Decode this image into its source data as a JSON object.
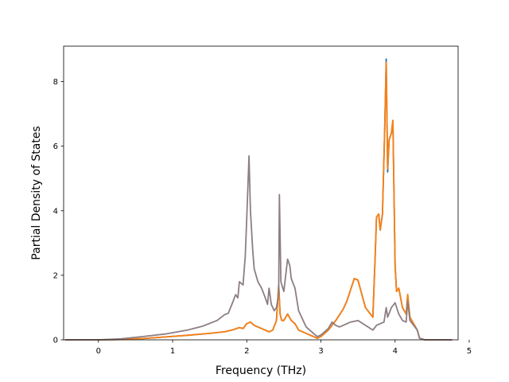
{
  "chart_data": {
    "type": "line",
    "title": "",
    "xlabel": "Frequency (THz)",
    "ylabel": "Partial Density of States",
    "xlim": [
      -0.47,
      4.85
    ],
    "ylim": [
      0,
      9.1
    ],
    "xticks": [
      0,
      1,
      2,
      3,
      4,
      5
    ],
    "yticks": [
      0,
      2,
      4,
      6,
      8
    ],
    "xtick_labels": [
      "0",
      "1",
      "2",
      "3",
      "4",
      "5"
    ],
    "ytick_labels": [
      "0",
      "2",
      "4",
      "6",
      "8"
    ],
    "grid": false,
    "legend": null,
    "series": [
      {
        "color": "#1f77b4",
        "x": [
          -0.45,
          0.0,
          0.3,
          0.6,
          0.9,
          1.2,
          1.5,
          1.7,
          1.8,
          1.9,
          1.95,
          2.0,
          2.05,
          2.1,
          2.2,
          2.3,
          2.35,
          2.4,
          2.43,
          2.45,
          2.47,
          2.5,
          2.55,
          2.6,
          2.65,
          2.7,
          2.8,
          2.9,
          2.95,
          3.0,
          3.1,
          3.2,
          3.3,
          3.35,
          3.4,
          3.45,
          3.5,
          3.6,
          3.7,
          3.73,
          3.75,
          3.78,
          3.8,
          3.83,
          3.86,
          3.88,
          3.9,
          3.92,
          3.95,
          3.97,
          4.0,
          4.02,
          4.05,
          4.1,
          4.15,
          4.17,
          4.2,
          4.3,
          4.33,
          4.4,
          4.6,
          4.77
        ],
        "y": [
          0.0,
          0.0,
          0.01,
          0.04,
          0.09,
          0.14,
          0.2,
          0.25,
          0.3,
          0.38,
          0.35,
          0.5,
          0.55,
          0.45,
          0.35,
          0.25,
          0.3,
          0.6,
          1.7,
          0.8,
          0.6,
          0.6,
          0.8,
          0.6,
          0.5,
          0.3,
          0.2,
          0.1,
          0.05,
          0.1,
          0.3,
          0.6,
          0.95,
          1.2,
          1.55,
          1.9,
          1.85,
          1.0,
          0.7,
          2.5,
          3.8,
          3.9,
          3.4,
          3.9,
          6.5,
          8.7,
          5.2,
          6.2,
          6.4,
          6.8,
          2.3,
          1.5,
          1.6,
          1.0,
          0.8,
          1.4,
          0.7,
          0.3,
          0.05,
          0.0,
          0.0,
          0.0
        ]
      },
      {
        "color": "#ff7f0e",
        "x": [
          -0.45,
          0.0,
          0.3,
          0.6,
          0.9,
          1.2,
          1.5,
          1.7,
          1.8,
          1.9,
          1.95,
          2.0,
          2.05,
          2.1,
          2.2,
          2.3,
          2.35,
          2.4,
          2.43,
          2.45,
          2.47,
          2.5,
          2.55,
          2.6,
          2.65,
          2.7,
          2.8,
          2.9,
          2.95,
          3.0,
          3.1,
          3.2,
          3.3,
          3.35,
          3.4,
          3.45,
          3.5,
          3.6,
          3.7,
          3.73,
          3.75,
          3.78,
          3.8,
          3.83,
          3.86,
          3.88,
          3.9,
          3.92,
          3.95,
          3.97,
          4.0,
          4.02,
          4.05,
          4.1,
          4.15,
          4.17,
          4.2,
          4.3,
          4.33,
          4.4,
          4.6,
          4.77
        ],
        "y": [
          0.0,
          0.0,
          0.01,
          0.04,
          0.09,
          0.14,
          0.2,
          0.25,
          0.3,
          0.38,
          0.35,
          0.5,
          0.55,
          0.45,
          0.35,
          0.25,
          0.3,
          0.6,
          1.7,
          0.8,
          0.6,
          0.6,
          0.8,
          0.6,
          0.5,
          0.3,
          0.2,
          0.1,
          0.05,
          0.1,
          0.3,
          0.6,
          0.95,
          1.2,
          1.55,
          1.9,
          1.85,
          1.0,
          0.7,
          2.5,
          3.8,
          3.9,
          3.4,
          3.9,
          6.5,
          8.6,
          5.3,
          6.2,
          6.4,
          6.8,
          2.3,
          1.5,
          1.6,
          1.0,
          0.8,
          1.4,
          0.7,
          0.3,
          0.05,
          0.0,
          0.0,
          0.0
        ]
      },
      {
        "color": "#8c7e83",
        "x": [
          -0.45,
          0.0,
          0.3,
          0.6,
          0.9,
          1.2,
          1.4,
          1.6,
          1.7,
          1.75,
          1.8,
          1.85,
          1.88,
          1.9,
          1.95,
          1.98,
          2.0,
          2.03,
          2.05,
          2.08,
          2.1,
          2.15,
          2.2,
          2.25,
          2.28,
          2.3,
          2.33,
          2.37,
          2.4,
          2.43,
          2.44,
          2.46,
          2.5,
          2.55,
          2.58,
          2.6,
          2.65,
          2.7,
          2.8,
          2.9,
          2.95,
          3.0,
          3.05,
          3.1,
          3.15,
          3.2,
          3.25,
          3.3,
          3.35,
          3.4,
          3.5,
          3.6,
          3.7,
          3.75,
          3.8,
          3.85,
          3.88,
          3.9,
          3.95,
          4.0,
          4.05,
          4.1,
          4.15,
          4.17,
          4.2,
          4.3,
          4.33,
          4.4,
          4.6,
          4.77
        ],
        "y": [
          0.0,
          0.0,
          0.03,
          0.1,
          0.18,
          0.3,
          0.42,
          0.6,
          0.78,
          0.82,
          1.1,
          1.4,
          1.3,
          1.8,
          1.7,
          2.6,
          3.8,
          5.7,
          4.0,
          2.8,
          2.2,
          1.8,
          1.6,
          1.3,
          1.1,
          1.6,
          1.1,
          0.9,
          1.0,
          1.4,
          4.5,
          1.8,
          1.5,
          2.5,
          2.3,
          1.9,
          1.6,
          0.9,
          0.4,
          0.2,
          0.1,
          0.15,
          0.25,
          0.35,
          0.55,
          0.45,
          0.4,
          0.45,
          0.5,
          0.55,
          0.6,
          0.45,
          0.3,
          0.45,
          0.5,
          0.55,
          1.0,
          0.7,
          1.0,
          1.15,
          0.8,
          0.6,
          0.55,
          1.2,
          0.6,
          0.3,
          0.05,
          0.0,
          0.0,
          0.0
        ]
      }
    ]
  }
}
